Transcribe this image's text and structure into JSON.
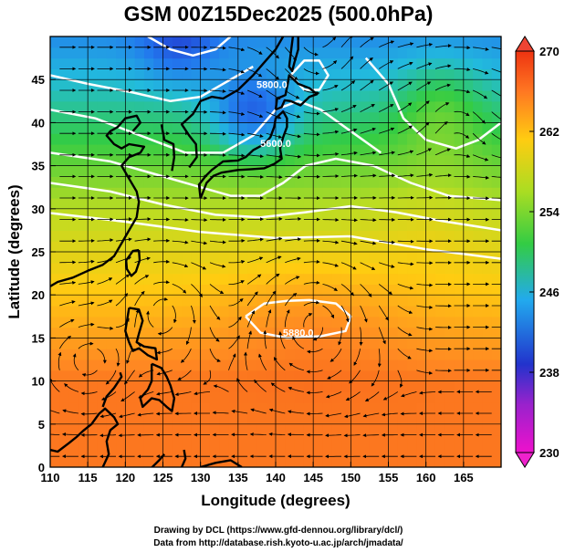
{
  "chart_data": {
    "type": "heatmap",
    "title": "GSM 00Z15Dec2025 (500.0hPa)",
    "xlabel": "Longitude (degrees)",
    "ylabel": "Latitude  (degrees)",
    "xlim": [
      110,
      170
    ],
    "ylim": [
      0,
      50
    ],
    "x_ticks": [
      110,
      115,
      120,
      125,
      130,
      135,
      140,
      145,
      150,
      155,
      160,
      165
    ],
    "y_ticks": [
      0,
      5,
      10,
      15,
      20,
      25,
      30,
      35,
      40,
      45
    ],
    "grid": true,
    "colorbar": {
      "min": 230,
      "max": 270,
      "ticks": [
        230,
        238,
        246,
        254,
        262,
        270
      ],
      "placement": "right"
    },
    "contour_labels": [
      {
        "text": "5800.0",
        "lon": 139.5,
        "lat": 44.0
      },
      {
        "text": "5600.0",
        "lon": 140.0,
        "lat": 37.2
      },
      {
        "text": "5880.0",
        "lon": 143.0,
        "lat": 15.2
      }
    ],
    "highlights": [
      {
        "name": "low-center",
        "lon": 145.5,
        "lat": 45.5
      },
      {
        "name": "high-center",
        "lon": 145.0,
        "lat": 17.0
      }
    ]
  },
  "credits": {
    "drawing": "Drawing by DCL (https://www.gfd-dennou.org/library/dcl/)",
    "data": "Data from http://database.rish.kyoto-u.ac.jp/arch/jmadata/"
  },
  "colors": {
    "temp_ramp": [
      "#ee11cc",
      "#2233cc",
      "#2277ee",
      "#22bbdd",
      "#33cc44",
      "#bbdd22",
      "#ffcc11",
      "#ff8822",
      "#ee3311"
    ],
    "contour": "#ffffff",
    "coastline": "#000000",
    "streamline": "#000000",
    "grid": "#000000"
  }
}
